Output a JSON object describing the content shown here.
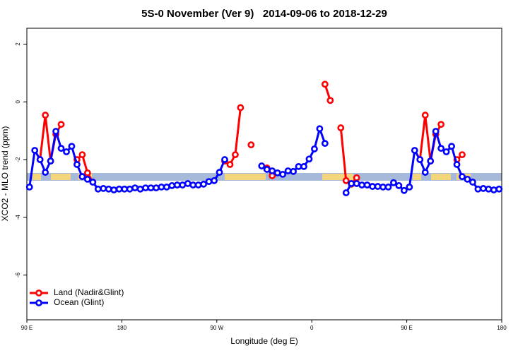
{
  "chart_data": {
    "type": "line",
    "title": "5S-0 November (Ver 9)   2014-09-06 to 2018-12-29",
    "x_label": "Longitude (deg E)",
    "y_label": "XCO2 - MLO trend (ppm)",
    "xlim": [
      90,
      540
    ],
    "xticks": [
      {
        "value": 90,
        "label": "90 E"
      },
      {
        "value": 180,
        "label": "180"
      },
      {
        "value": 270,
        "label": "90 W"
      },
      {
        "value": 360,
        "label": "0"
      },
      {
        "value": 450,
        "label": "90 E"
      },
      {
        "value": 540,
        "label": "180"
      }
    ],
    "ylim": [
      -7.55,
      2.55
    ],
    "yticks": [
      -6,
      -4,
      -2,
      0,
      2
    ],
    "legend": "bottom-left",
    "x": [
      92.5,
      97.5,
      102.5,
      107.5,
      112.5,
      117.5,
      122.5,
      127.5,
      132.5,
      137.5,
      142.5,
      147.5,
      152.5,
      157.5,
      162.5,
      167.5,
      172.5,
      177.5,
      182.5,
      187.5,
      192.5,
      197.5,
      202.5,
      207.5,
      212.5,
      217.5,
      222.5,
      227.5,
      232.5,
      237.5,
      242.5,
      247.5,
      252.5,
      257.5,
      262.5,
      267.5,
      272.5,
      277.5,
      282.5,
      287.5,
      292.5,
      297.5,
      302.5,
      307.5,
      312.5,
      317.5,
      322.5,
      327.5,
      332.5,
      337.5,
      342.5,
      347.5,
      352.5,
      357.5,
      362.5,
      367.5,
      372.5,
      377.5,
      382.5,
      387.5,
      392.5,
      397.5,
      402.5,
      407.5,
      412.5,
      417.5,
      422.5,
      427.5,
      432.5,
      437.5,
      442.5,
      447.5,
      452.5,
      457.5,
      462.5,
      467.5,
      472.5,
      477.5,
      482.5,
      487.5,
      492.5,
      497.5,
      502.5,
      507.5,
      512.5,
      517.5,
      522.5,
      527.5,
      532.5,
      537.5
    ],
    "series": [
      {
        "name": "Land (Nadir&Glint)",
        "color": "#ff0000",
        "values": [
          null,
          null,
          -2.0,
          -0.46,
          -2.05,
          -1.12,
          -0.78,
          null,
          null,
          -2.0,
          -1.83,
          -2.46,
          -2.78,
          null,
          null,
          null,
          null,
          null,
          null,
          null,
          null,
          null,
          null,
          null,
          null,
          null,
          null,
          null,
          null,
          null,
          null,
          null,
          null,
          null,
          null,
          null,
          null,
          -2.05,
          -2.17,
          -1.83,
          -0.2,
          null,
          -1.49,
          null,
          null,
          -2.29,
          -2.56,
          null,
          null,
          null,
          null,
          null,
          null,
          null,
          null,
          null,
          0.61,
          0.05,
          null,
          -0.9,
          -2.73,
          -2.85,
          -2.63,
          null,
          null,
          null,
          null,
          null,
          null,
          null,
          null,
          null,
          null,
          null,
          -2.0,
          -0.46,
          -2.05,
          -1.12,
          -0.78,
          null,
          null,
          -2.0,
          -1.83,
          null,
          null,
          null,
          null,
          null,
          null,
          null
        ]
      },
      {
        "name": "Ocean (Glint)",
        "color": "#0000ff",
        "values": [
          -2.95,
          -1.68,
          -2.0,
          -2.44,
          -2.05,
          -1.02,
          -1.61,
          -1.73,
          -1.54,
          -2.17,
          -2.59,
          -2.68,
          -2.78,
          -3.02,
          -3.0,
          -3.02,
          -3.05,
          -3.02,
          -3.02,
          -3.02,
          -2.98,
          -3.02,
          -2.98,
          -2.98,
          -2.98,
          -2.95,
          -2.95,
          -2.9,
          -2.88,
          -2.88,
          -2.83,
          -2.88,
          -2.88,
          -2.85,
          -2.76,
          -2.73,
          -2.44,
          -2.0,
          null,
          null,
          null,
          null,
          null,
          null,
          -2.22,
          -2.34,
          -2.39,
          -2.46,
          -2.51,
          -2.39,
          -2.41,
          -2.24,
          -2.24,
          -1.98,
          -1.63,
          -0.93,
          -1.44,
          null,
          null,
          null,
          -3.15,
          -2.83,
          -2.83,
          -2.88,
          -2.88,
          -2.93,
          -2.93,
          -2.95,
          -2.95,
          -2.8,
          -2.9,
          -3.07,
          -2.95,
          -1.68,
          -2.0,
          -2.44,
          -2.05,
          -1.02,
          -1.61,
          -1.73,
          -1.54,
          -2.17,
          -2.59,
          -2.68,
          -2.78,
          -3.02,
          -3.0,
          -3.02,
          -3.05,
          -3.02
        ]
      }
    ]
  }
}
